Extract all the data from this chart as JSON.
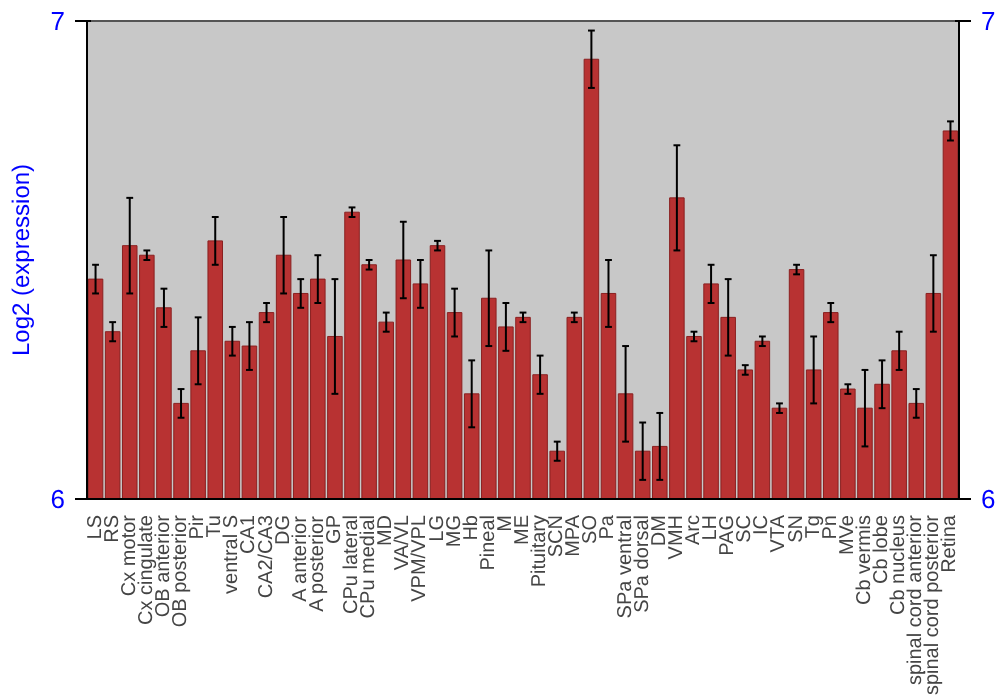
{
  "chart_data": {
    "type": "bar",
    "ylabel": "Log2 (expression)",
    "categories": [
      "LS",
      "RS",
      "Cx motor",
      "Cx cingulate",
      "OB anterior",
      "OB posterior",
      "Pir",
      "Tu",
      "ventral S",
      "CA1",
      "CA2/CA3",
      "DG",
      "A anterior",
      "A posterior",
      "GP",
      "CPu lateral",
      "CPu medial",
      "MD",
      "VA/VL",
      "VPM/VPL",
      "LG",
      "MG",
      "Hb",
      "Pineal",
      "M",
      "ME",
      "Pituitary",
      "SCN",
      "MPA",
      "SO",
      "Pa",
      "SPa ventral",
      "SPa dorsal",
      "DM",
      "VMH",
      "Arc",
      "LH",
      "PAG",
      "SC",
      "IC",
      "VTA",
      "SN",
      "Tg",
      "Pn",
      "MVe",
      "Cb vermis",
      "Cb lobe",
      "Cb nucleus",
      "spinal cord anterior",
      "spinal cord posterior",
      "Retina"
    ],
    "values": [
      6.46,
      6.35,
      6.53,
      6.51,
      6.4,
      6.2,
      6.31,
      6.54,
      6.33,
      6.32,
      6.39,
      6.51,
      6.43,
      6.46,
      6.34,
      6.6,
      6.49,
      6.37,
      6.5,
      6.45,
      6.53,
      6.39,
      6.22,
      6.42,
      6.36,
      6.38,
      6.26,
      6.1,
      6.38,
      6.92,
      6.43,
      6.22,
      6.1,
      6.11,
      6.63,
      6.34,
      6.45,
      6.38,
      6.27,
      6.33,
      6.19,
      6.48,
      6.27,
      6.39,
      6.23,
      6.19,
      6.24,
      6.31,
      6.2,
      6.43,
      6.77
    ],
    "errors": [
      0.03,
      0.02,
      0.1,
      0.01,
      0.04,
      0.03,
      0.07,
      0.05,
      0.03,
      0.05,
      0.02,
      0.08,
      0.03,
      0.05,
      0.12,
      0.01,
      0.01,
      0.02,
      0.08,
      0.05,
      0.01,
      0.05,
      0.07,
      0.1,
      0.05,
      0.01,
      0.04,
      0.02,
      0.01,
      0.06,
      0.07,
      0.1,
      0.06,
      0.07,
      0.11,
      0.01,
      0.04,
      0.08,
      0.01,
      0.01,
      0.01,
      0.01,
      0.07,
      0.02,
      0.01,
      0.08,
      0.05,
      0.04,
      0.03,
      0.08,
      0.02
    ],
    "color": "#b83232",
    "ylim": [
      6,
      7
    ],
    "yticks": [
      6,
      7
    ],
    "y2lim": [
      6,
      7
    ],
    "y2ticks": [
      6,
      7
    ],
    "grid": false
  }
}
